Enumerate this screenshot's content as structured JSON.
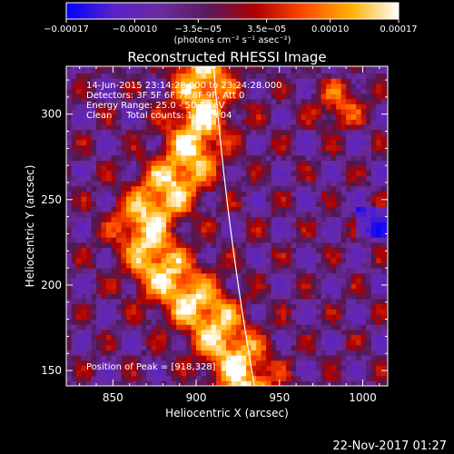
{
  "chart_data": {
    "type": "heatmap",
    "title": "Reconstructed RHESSI Image",
    "xlabel": "Heliocentric X (arcsec)",
    "ylabel": "Heliocentric Y (arcsec)",
    "xlim": [
      822,
      1015
    ],
    "ylim": [
      141,
      328
    ],
    "xticks": [
      850,
      900,
      950,
      1000
    ],
    "yticks": [
      150,
      200,
      250,
      300
    ],
    "colorbar": {
      "label_html": "(photons cm⁻² s⁻¹ asec⁻²)",
      "min": -0.00017,
      "max": 0.00017,
      "ticks": [
        {
          "value": -0.00017,
          "label": "−0.00017"
        },
        {
          "value": -0.0001,
          "label": "−0.00010"
        },
        {
          "value": -3.5e-05,
          "label": "−3.5e−05"
        },
        {
          "value": 3.5e-05,
          "label": "3.5e−05"
        },
        {
          "value": 0.0001,
          "label": "0.00010"
        },
        {
          "value": 0.00017,
          "label": "0.00017"
        }
      ],
      "colors": [
        "#0000ff",
        "#5a22c8",
        "#6a2aa0",
        "#5a1a5a",
        "#b00000",
        "#ff4a00",
        "#ffb000",
        "#ffffff"
      ]
    },
    "annotations": {
      "line1": "14-Jun-2015 23:14:28.000 to 23:24:28.000",
      "line2": "Detectors: 3F 5F 6F 7F 8F 9F, Att 0",
      "line3": "Energy Range: 25.0 - 50.0 keV",
      "line4": "Clean     Total counts: 1.22E+04",
      "peak": "Position of Peak = [918,328]"
    },
    "limb": {
      "x_at_top": 910,
      "x_at_bottom": 935
    },
    "emission_ridge": {
      "description_points": [
        [
          905,
          328
        ],
        [
          903,
          300
        ],
        [
          898,
          280
        ],
        [
          890,
          265
        ],
        [
          878,
          250
        ],
        [
          868,
          235
        ],
        [
          875,
          215
        ],
        [
          888,
          200
        ],
        [
          905,
          185
        ],
        [
          915,
          170
        ],
        [
          925,
          155
        ],
        [
          930,
          141
        ]
      ]
    }
  },
  "footer": {
    "date": "22-Nov-2017 01:27"
  }
}
